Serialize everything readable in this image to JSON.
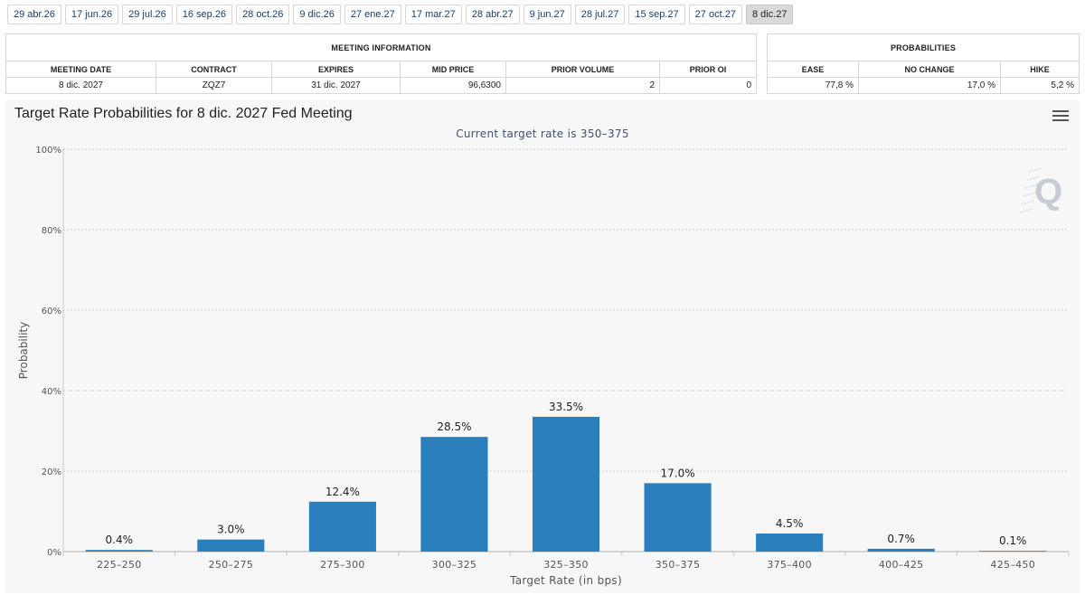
{
  "tabs": [
    {
      "label": "29 abr.26"
    },
    {
      "label": "17 jun.26"
    },
    {
      "label": "29 jul.26"
    },
    {
      "label": "16 sep.26"
    },
    {
      "label": "28 oct.26"
    },
    {
      "label": "9 dic.26"
    },
    {
      "label": "27 ene.27"
    },
    {
      "label": "17 mar.27"
    },
    {
      "label": "28 abr.27"
    },
    {
      "label": "9 jun.27"
    },
    {
      "label": "28 jul.27"
    },
    {
      "label": "15 sep.27"
    },
    {
      "label": "27 oct.27"
    },
    {
      "label": "8 dic.27"
    }
  ],
  "meeting_info": {
    "caption": "MEETING INFORMATION",
    "headers": [
      "MEETING DATE",
      "CONTRACT",
      "EXPIRES",
      "MID PRICE",
      "PRIOR VOLUME",
      "PRIOR OI"
    ],
    "row": [
      "8 dic. 2027",
      "ZQZ7",
      "31 dic. 2027",
      "96,6300",
      "2",
      "0"
    ]
  },
  "probabilities": {
    "caption": "PROBABILITIES",
    "headers": [
      "EASE",
      "NO CHANGE",
      "HIKE"
    ],
    "row": [
      "77,8 %",
      "17,0 %",
      "5,2 %"
    ]
  },
  "chart": {
    "title": "Target Rate Probabilities for 8 dic. 2027 Fed Meeting",
    "subtitle": "Current target rate is 350–375",
    "menu_icon": "hamburger-menu-icon",
    "watermark_icon": "q-logo-icon",
    "bar_color": "#2b7fbd"
  },
  "chart_data": {
    "type": "bar",
    "title": "Target Rate Probabilities for 8 dic. 2027 Fed Meeting",
    "subtitle": "Current target rate is 350–375",
    "xlabel": "Target Rate (in bps)",
    "ylabel": "Probability",
    "ylim": [
      0,
      100
    ],
    "yticks": [
      0,
      20,
      40,
      60,
      80,
      100
    ],
    "ytick_labels": [
      "0%",
      "20%",
      "40%",
      "60%",
      "80%",
      "100%"
    ],
    "grid": true,
    "categories": [
      "225–250",
      "250–275",
      "275–300",
      "300–325",
      "325–350",
      "350–375",
      "375–400",
      "400–425",
      "425–450"
    ],
    "values": [
      0.4,
      3.0,
      12.4,
      28.5,
      33.5,
      17.0,
      4.5,
      0.7,
      0.1
    ],
    "data_labels": [
      "0.4%",
      "3.0%",
      "12.4%",
      "28.5%",
      "33.5%",
      "17.0%",
      "4.5%",
      "0.7%",
      "0.1%"
    ]
  }
}
